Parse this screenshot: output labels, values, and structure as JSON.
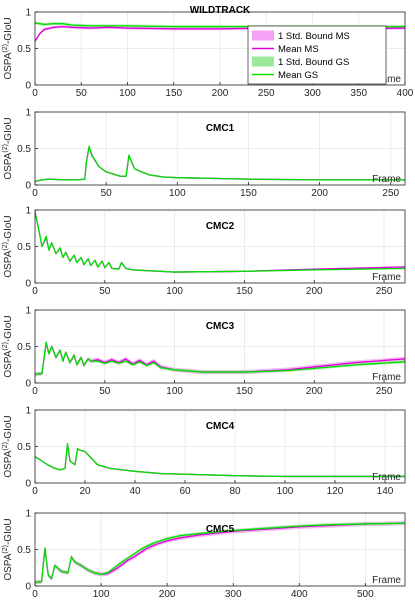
{
  "colors": {
    "ms_band": "#f4a3f4",
    "ms_line": "#e000e0",
    "gs_band": "#9be89b",
    "gs_line": "#00e000",
    "grid": "#e6e6e6",
    "axis": "#262626"
  },
  "legend": {
    "placement": "top-right of first panel",
    "entries": [
      {
        "label": "1 Std. Bound MS",
        "kind": "band",
        "color": "#f4a3f4"
      },
      {
        "label": "Mean MS",
        "kind": "line",
        "color": "#e000e0"
      },
      {
        "label": "1 Std. Bound GS",
        "kind": "band",
        "color": "#9be89b"
      },
      {
        "label": "Mean GS",
        "kind": "line",
        "color": "#00e000"
      }
    ]
  },
  "chart_data": [
    {
      "type": "line",
      "title": "WILDTRACK",
      "xlabel": "Frame",
      "ylabel": "OSPA(2)-GIoU",
      "xlim": [
        0,
        400
      ],
      "ylim": [
        0,
        1
      ],
      "xticks": [
        "0",
        "50",
        "100",
        "150",
        "200",
        "250",
        "300",
        "350",
        "400"
      ],
      "yticks": [
        "0",
        "0.5",
        "1"
      ],
      "grid": true,
      "series": [
        {
          "name": "Mean MS",
          "x": [
            0,
            5,
            10,
            20,
            30,
            40,
            60,
            80,
            100,
            150,
            200,
            250,
            300,
            350,
            400
          ],
          "y": [
            0.6,
            0.7,
            0.76,
            0.79,
            0.8,
            0.79,
            0.78,
            0.79,
            0.78,
            0.77,
            0.77,
            0.78,
            0.78,
            0.77,
            0.78
          ],
          "band": 0.02
        },
        {
          "name": "Mean GS",
          "x": [
            0,
            5,
            10,
            20,
            30,
            40,
            60,
            80,
            100,
            150,
            200,
            250,
            300,
            350,
            400
          ],
          "y": [
            0.85,
            0.84,
            0.83,
            0.84,
            0.84,
            0.82,
            0.81,
            0.81,
            0.81,
            0.8,
            0.8,
            0.8,
            0.8,
            0.8,
            0.8
          ],
          "band": 0.02
        }
      ]
    },
    {
      "type": "line",
      "title": "CMC1",
      "xlabel": "Frame",
      "ylabel": "OSPA(2)-GIoU",
      "xlim": [
        0,
        260
      ],
      "ylim": [
        0,
        1
      ],
      "xticks": [
        "0",
        "50",
        "100",
        "150",
        "200",
        "250"
      ],
      "yticks": [
        "0",
        "0.5",
        "1"
      ],
      "grid": true,
      "series": [
        {
          "name": "Mean MS",
          "x": [
            0,
            5,
            10,
            20,
            30,
            35,
            36,
            38,
            40,
            45,
            50,
            60,
            64,
            66,
            70,
            80,
            90,
            100,
            150,
            200,
            260
          ],
          "y": [
            0.05,
            0.07,
            0.08,
            0.07,
            0.07,
            0.08,
            0.3,
            0.52,
            0.4,
            0.25,
            0.18,
            0.12,
            0.12,
            0.4,
            0.22,
            0.14,
            0.11,
            0.1,
            0.08,
            0.07,
            0.07
          ],
          "band": 0.01
        },
        {
          "name": "Mean GS",
          "x": [
            0,
            5,
            10,
            20,
            30,
            35,
            36,
            38,
            40,
            45,
            50,
            60,
            64,
            66,
            70,
            80,
            90,
            100,
            150,
            200,
            260
          ],
          "y": [
            0.05,
            0.07,
            0.08,
            0.07,
            0.07,
            0.08,
            0.3,
            0.53,
            0.41,
            0.25,
            0.18,
            0.12,
            0.12,
            0.41,
            0.22,
            0.14,
            0.11,
            0.1,
            0.08,
            0.07,
            0.07
          ],
          "band": 0.01
        }
      ]
    },
    {
      "type": "line",
      "title": "CMC2",
      "xlabel": "Frame",
      "ylabel": "OSPA(2)-GIoU",
      "xlim": [
        0,
        265
      ],
      "ylim": [
        0,
        1
      ],
      "xticks": [
        "0",
        "50",
        "100",
        "150",
        "200",
        "250"
      ],
      "yticks": [
        "0",
        "0.5",
        "1"
      ],
      "grid": true,
      "series": [
        {
          "name": "Mean MS",
          "x": [
            0,
            3,
            5,
            8,
            10,
            12,
            15,
            18,
            20,
            22,
            25,
            28,
            30,
            33,
            35,
            38,
            40,
            43,
            45,
            48,
            50,
            53,
            55,
            60,
            62,
            65,
            70,
            80,
            100,
            150,
            200,
            265
          ],
          "y": [
            0.98,
            0.7,
            0.5,
            0.62,
            0.45,
            0.55,
            0.4,
            0.48,
            0.35,
            0.42,
            0.3,
            0.38,
            0.28,
            0.35,
            0.25,
            0.33,
            0.24,
            0.31,
            0.22,
            0.3,
            0.21,
            0.28,
            0.2,
            0.19,
            0.28,
            0.2,
            0.18,
            0.17,
            0.15,
            0.16,
            0.19,
            0.22
          ],
          "band": 0.01
        },
        {
          "name": "Mean GS",
          "x": [
            0,
            3,
            5,
            8,
            10,
            12,
            15,
            18,
            20,
            22,
            25,
            28,
            30,
            33,
            35,
            38,
            40,
            43,
            45,
            48,
            50,
            53,
            55,
            60,
            62,
            65,
            70,
            80,
            100,
            150,
            200,
            265
          ],
          "y": [
            0.98,
            0.7,
            0.5,
            0.64,
            0.45,
            0.55,
            0.4,
            0.48,
            0.35,
            0.42,
            0.3,
            0.38,
            0.28,
            0.35,
            0.25,
            0.33,
            0.24,
            0.31,
            0.22,
            0.3,
            0.21,
            0.28,
            0.2,
            0.19,
            0.28,
            0.2,
            0.18,
            0.17,
            0.15,
            0.16,
            0.18,
            0.2
          ],
          "band": 0.01
        }
      ]
    },
    {
      "type": "line",
      "title": "CMC3",
      "xlabel": "Frame",
      "ylabel": "OSPA(2)-GIoU",
      "xlim": [
        0,
        265
      ],
      "ylim": [
        0,
        1
      ],
      "xticks": [
        "0",
        "50",
        "100",
        "150",
        "200",
        "250"
      ],
      "yticks": [
        "0",
        "0.5",
        "1"
      ],
      "grid": true,
      "series": [
        {
          "name": "Mean MS",
          "x": [
            0,
            5,
            8,
            10,
            12,
            15,
            18,
            20,
            22,
            25,
            28,
            30,
            33,
            35,
            38,
            40,
            45,
            50,
            55,
            60,
            65,
            70,
            75,
            80,
            85,
            90,
            100,
            120,
            150,
            180,
            200,
            230,
            265
          ],
          "y": [
            0.12,
            0.13,
            0.55,
            0.4,
            0.5,
            0.35,
            0.45,
            0.3,
            0.42,
            0.28,
            0.38,
            0.25,
            0.35,
            0.24,
            0.33,
            0.3,
            0.32,
            0.28,
            0.32,
            0.28,
            0.33,
            0.26,
            0.31,
            0.25,
            0.3,
            0.22,
            0.18,
            0.15,
            0.15,
            0.18,
            0.22,
            0.28,
            0.33
          ],
          "band": 0.03
        },
        {
          "name": "Mean GS",
          "x": [
            0,
            5,
            8,
            10,
            12,
            15,
            18,
            20,
            22,
            25,
            28,
            30,
            33,
            35,
            38,
            40,
            45,
            50,
            55,
            60,
            65,
            70,
            75,
            80,
            85,
            90,
            100,
            120,
            150,
            180,
            200,
            230,
            265
          ],
          "y": [
            0.12,
            0.13,
            0.56,
            0.4,
            0.5,
            0.35,
            0.45,
            0.3,
            0.42,
            0.28,
            0.38,
            0.25,
            0.35,
            0.24,
            0.33,
            0.3,
            0.3,
            0.27,
            0.3,
            0.27,
            0.3,
            0.25,
            0.29,
            0.24,
            0.28,
            0.21,
            0.18,
            0.15,
            0.15,
            0.17,
            0.2,
            0.25,
            0.29
          ],
          "band": 0.02
        }
      ]
    },
    {
      "type": "line",
      "title": "CMC4",
      "xlabel": "Frame",
      "ylabel": "OSPA(2)-GIoU",
      "xlim": [
        0,
        148
      ],
      "ylim": [
        0,
        1
      ],
      "xticks": [
        "0",
        "20",
        "40",
        "60",
        "80",
        "100",
        "120",
        "140"
      ],
      "yticks": [
        "0",
        "0.5",
        "1"
      ],
      "grid": true,
      "series": [
        {
          "name": "Mean MS",
          "x": [
            0,
            2,
            5,
            8,
            10,
            12,
            13,
            14,
            16,
            17,
            18,
            20,
            25,
            30,
            40,
            50,
            60,
            80,
            100,
            120,
            148
          ],
          "y": [
            0.36,
            0.32,
            0.25,
            0.2,
            0.18,
            0.2,
            0.53,
            0.3,
            0.25,
            0.47,
            0.45,
            0.43,
            0.25,
            0.2,
            0.16,
            0.13,
            0.12,
            0.1,
            0.09,
            0.09,
            0.09
          ],
          "band": 0.01
        },
        {
          "name": "Mean GS",
          "x": [
            0,
            2,
            5,
            8,
            10,
            12,
            13,
            14,
            16,
            17,
            18,
            20,
            25,
            30,
            40,
            50,
            60,
            80,
            100,
            120,
            148
          ],
          "y": [
            0.36,
            0.32,
            0.25,
            0.2,
            0.18,
            0.2,
            0.54,
            0.3,
            0.25,
            0.47,
            0.45,
            0.43,
            0.25,
            0.2,
            0.16,
            0.13,
            0.12,
            0.1,
            0.09,
            0.09,
            0.09
          ],
          "band": 0.01
        }
      ]
    },
    {
      "type": "line",
      "title": "CMC5",
      "xlabel": "Frame",
      "ylabel": "OSPA(2)-GIoU",
      "xlim": [
        0,
        560
      ],
      "ylim": [
        0,
        1
      ],
      "xticks": [
        "0",
        "100",
        "200",
        "300",
        "400",
        "500"
      ],
      "yticks": [
        "0",
        "0.5",
        "1"
      ],
      "grid": true,
      "series": [
        {
          "name": "Mean MS",
          "x": [
            0,
            10,
            15,
            20,
            25,
            30,
            40,
            50,
            55,
            60,
            70,
            80,
            90,
            100,
            110,
            120,
            130,
            140,
            150,
            160,
            170,
            180,
            200,
            220,
            250,
            300,
            350,
            400,
            450,
            500,
            560
          ],
          "y": [
            0.05,
            0.06,
            0.52,
            0.15,
            0.1,
            0.28,
            0.2,
            0.18,
            0.4,
            0.33,
            0.28,
            0.22,
            0.18,
            0.16,
            0.17,
            0.22,
            0.28,
            0.35,
            0.4,
            0.46,
            0.52,
            0.56,
            0.62,
            0.66,
            0.7,
            0.75,
            0.78,
            0.81,
            0.83,
            0.85,
            0.86
          ],
          "band": 0.03
        },
        {
          "name": "Mean GS",
          "x": [
            0,
            10,
            15,
            20,
            25,
            30,
            40,
            50,
            55,
            60,
            70,
            80,
            90,
            100,
            110,
            120,
            130,
            140,
            150,
            160,
            170,
            180,
            200,
            220,
            250,
            300,
            350,
            400,
            450,
            500,
            560
          ],
          "y": [
            0.05,
            0.06,
            0.52,
            0.15,
            0.1,
            0.28,
            0.2,
            0.18,
            0.4,
            0.33,
            0.28,
            0.22,
            0.18,
            0.16,
            0.18,
            0.25,
            0.32,
            0.38,
            0.44,
            0.5,
            0.55,
            0.59,
            0.65,
            0.69,
            0.72,
            0.76,
            0.79,
            0.82,
            0.84,
            0.85,
            0.86
          ],
          "band": 0.02
        }
      ]
    }
  ]
}
